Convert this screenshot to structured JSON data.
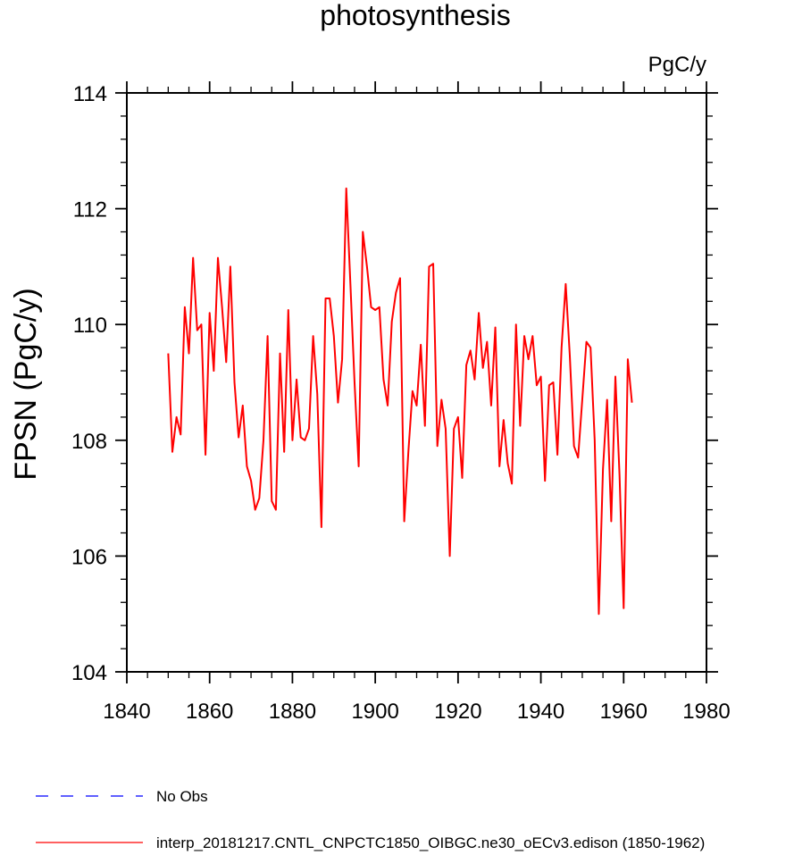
{
  "chart_data": {
    "type": "line",
    "title": "photosynthesis",
    "units": "PgC/y",
    "xlabel": "",
    "ylabel": "FPSN  (PgC/y)",
    "xlim": [
      1840,
      1980
    ],
    "ylim": [
      104,
      114
    ],
    "x_ticks": [
      1840,
      1860,
      1880,
      1900,
      1920,
      1940,
      1960,
      1980
    ],
    "y_ticks": [
      104,
      106,
      108,
      110,
      112,
      114
    ],
    "x_tick_labels": [
      "1840",
      "1860",
      "1880",
      "1900",
      "1920",
      "1940",
      "1960",
      "1980"
    ],
    "y_tick_labels": [
      "104",
      "106",
      "108",
      "110",
      "112",
      "114"
    ],
    "series": [
      {
        "name": "interp_20181217.CNTL_CNPCTC1850_OIBGC.ne30_oECv3.edison (1850-1962)",
        "color": "#ff0000",
        "style": "solid",
        "x": [
          1850,
          1851,
          1852,
          1853,
          1854,
          1855,
          1856,
          1857,
          1858,
          1859,
          1860,
          1861,
          1862,
          1863,
          1864,
          1865,
          1866,
          1867,
          1868,
          1869,
          1870,
          1871,
          1872,
          1873,
          1874,
          1875,
          1876,
          1877,
          1878,
          1879,
          1880,
          1881,
          1882,
          1883,
          1884,
          1885,
          1886,
          1887,
          1888,
          1889,
          1890,
          1891,
          1892,
          1893,
          1894,
          1895,
          1896,
          1897,
          1898,
          1899,
          1900,
          1901,
          1902,
          1903,
          1904,
          1905,
          1906,
          1907,
          1908,
          1909,
          1910,
          1911,
          1912,
          1913,
          1914,
          1915,
          1916,
          1917,
          1918,
          1919,
          1920,
          1921,
          1922,
          1923,
          1924,
          1925,
          1926,
          1927,
          1928,
          1929,
          1930,
          1931,
          1932,
          1933,
          1934,
          1935,
          1936,
          1937,
          1938,
          1939,
          1940,
          1941,
          1942,
          1943,
          1944,
          1945,
          1946,
          1947,
          1948,
          1949,
          1950,
          1951,
          1952,
          1953,
          1954,
          1955,
          1956,
          1957,
          1958,
          1959,
          1960,
          1961,
          1962
        ],
        "values": [
          109.5,
          107.8,
          108.4,
          108.1,
          110.3,
          109.5,
          111.15,
          109.9,
          110.0,
          107.75,
          110.2,
          109.2,
          111.15,
          110.3,
          109.35,
          111.0,
          109.0,
          108.05,
          108.6,
          107.55,
          107.3,
          106.8,
          107.0,
          108.0,
          109.8,
          106.95,
          106.8,
          109.5,
          107.8,
          110.25,
          108.0,
          109.05,
          108.05,
          108.0,
          108.2,
          109.8,
          108.8,
          106.5,
          110.45,
          110.45,
          109.8,
          108.65,
          109.4,
          112.35,
          110.7,
          109.0,
          107.55,
          111.6,
          111.0,
          110.3,
          110.25,
          110.3,
          109.05,
          108.6,
          110.05,
          110.55,
          110.8,
          106.6,
          107.8,
          108.85,
          108.6,
          109.65,
          108.25,
          111.0,
          111.05,
          107.9,
          108.7,
          108.2,
          106.0,
          108.2,
          108.4,
          107.35,
          109.3,
          109.55,
          109.05,
          110.2,
          109.25,
          109.7,
          108.6,
          109.95,
          107.55,
          108.35,
          107.6,
          107.25,
          110.0,
          108.25,
          109.8,
          109.4,
          109.8,
          108.95,
          109.1,
          107.3,
          108.95,
          109.0,
          107.75,
          109.6,
          110.7,
          109.45,
          107.9,
          107.7,
          108.7,
          109.7,
          109.6,
          108.0,
          105.0,
          107.5,
          108.7,
          106.6,
          109.1,
          107.4,
          105.1,
          109.4,
          108.65
        ]
      },
      {
        "name": "No Obs",
        "color": "#0000ff",
        "style": "dashed",
        "x": [],
        "values": []
      }
    ],
    "legend_position": "bottom-left",
    "grid": false
  }
}
